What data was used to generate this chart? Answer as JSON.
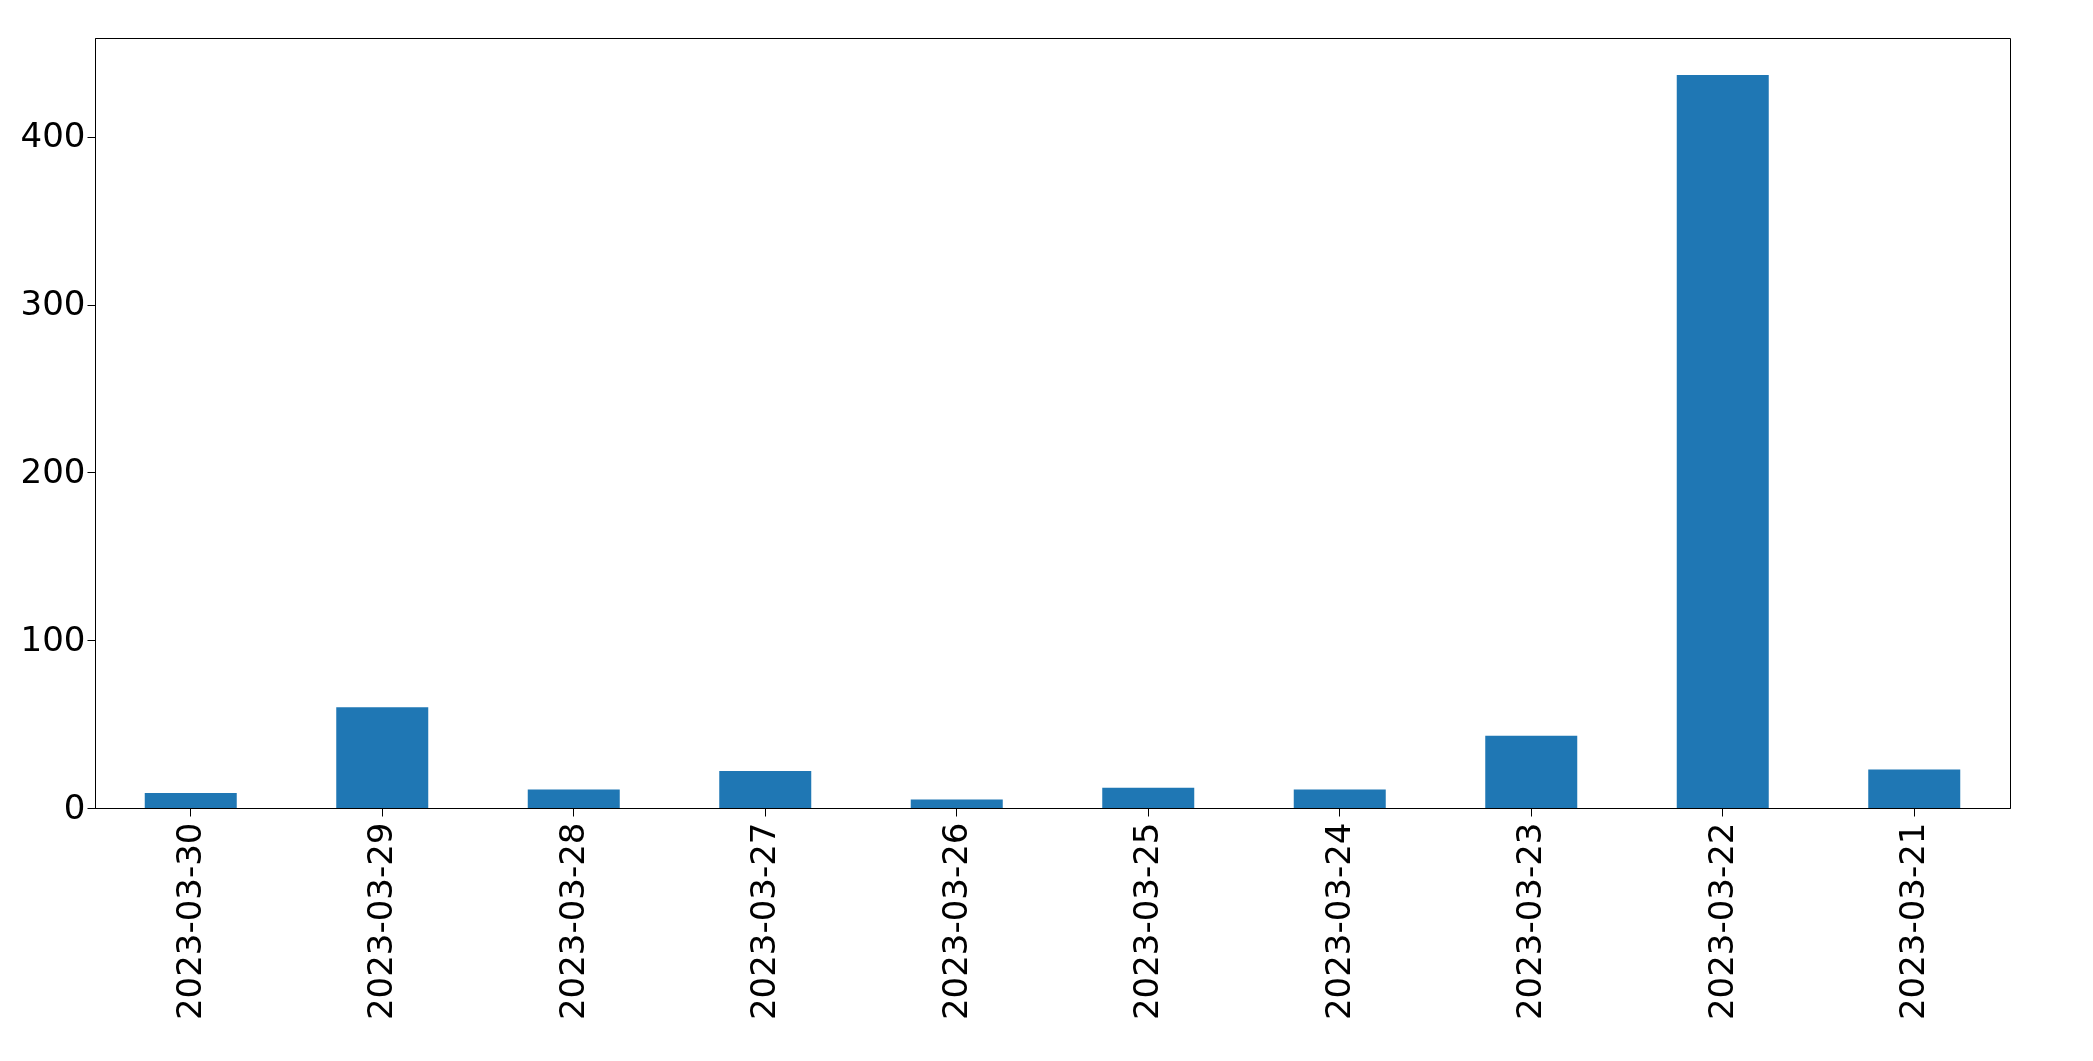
{
  "chart_data": {
    "type": "bar",
    "categories": [
      "2023-03-30",
      "2023-03-29",
      "2023-03-28",
      "2023-03-27",
      "2023-03-26",
      "2023-03-25",
      "2023-03-24",
      "2023-03-23",
      "2023-03-22",
      "2023-03-21"
    ],
    "values": [
      9,
      60,
      11,
      22,
      5,
      12,
      11,
      43,
      437,
      23
    ],
    "color": "#1f77b4",
    "ylim": [
      0,
      459
    ],
    "yticks": [
      0,
      100,
      200,
      300,
      400
    ],
    "grid": false
  }
}
